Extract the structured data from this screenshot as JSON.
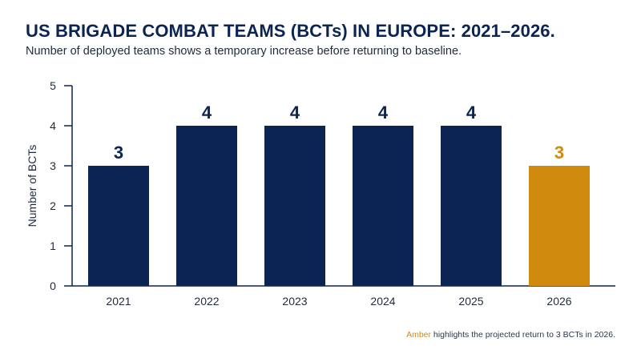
{
  "title": "US BRIGADE COMBAT TEAMS (BCTs) IN EUROPE: 2021–2026.",
  "subtitle": "Number of deployed teams shows a temporary increase before returning to baseline.",
  "footnote": {
    "highlight": "Amber",
    "text": " highlights the projected return to 3 BCTs in 2026."
  },
  "colors": {
    "navy": "#0b2451",
    "amber": "#d08a0e",
    "axis": "#0b2451",
    "text": "#1f2a3d"
  },
  "chart_data": {
    "type": "bar",
    "categories": [
      "2021",
      "2022",
      "2023",
      "2024",
      "2025",
      "2026"
    ],
    "values": [
      3,
      4,
      4,
      4,
      4,
      3
    ],
    "highlighted": [
      "2026"
    ],
    "ylabel": "Number of BCTs",
    "xlabel": "",
    "ylim": [
      0,
      5
    ],
    "yticks": [
      0,
      1,
      2,
      3,
      4,
      5
    ],
    "grid": false,
    "data_labels": true
  }
}
